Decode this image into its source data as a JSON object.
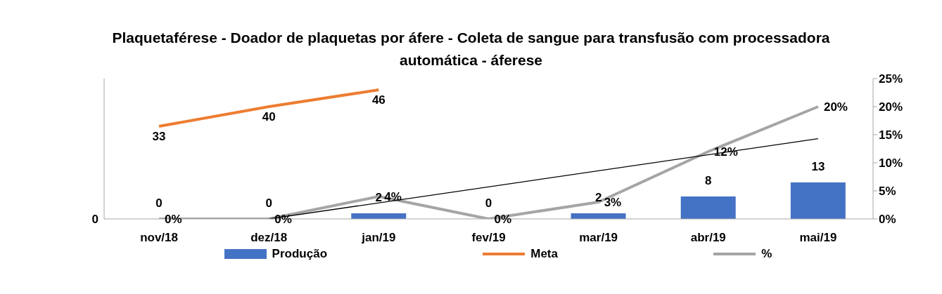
{
  "chart_data": {
    "type": "bar",
    "title": "Plaquetaférese - Doador de plaquetas por áfere - Coleta de sangue para transfusão com processadora automática - áferese",
    "categories": [
      "nov/18",
      "dez/18",
      "jan/19",
      "fev/19",
      "mar/19",
      "abr/19",
      "mai/19"
    ],
    "series": [
      {
        "name": "Produção",
        "color": "#4472c4",
        "values": [
          0,
          0,
          2,
          0,
          2,
          8,
          13
        ],
        "value_labels": [
          "0",
          "0",
          "2",
          "0",
          "2",
          "8",
          "13"
        ]
      },
      {
        "name": "Meta",
        "type": "line",
        "color": "#ed7d31",
        "values": [
          33,
          40,
          46,
          null,
          null,
          null,
          null
        ],
        "value_labels": [
          "33",
          "40",
          "46",
          null,
          null,
          null,
          null
        ]
      },
      {
        "name": "%",
        "type": "line",
        "color": "#a5a5a5",
        "axis": "y2",
        "values": [
          0,
          0,
          4,
          0,
          3,
          12,
          20
        ],
        "value_labels": [
          "0%",
          "0%",
          "4%",
          "0%",
          "3%",
          "12%",
          "20%"
        ]
      },
      {
        "type": "line",
        "color": "#000000",
        "axis": "y2",
        "x": [
          "dez/18",
          "mai/19"
        ],
        "values": [
          0,
          14.3
        ]
      }
    ],
    "ylim": [
      0,
      50
    ],
    "annotations": [
      "0"
    ],
    "y2lim": [
      0,
      25
    ],
    "y2ticks": [
      {
        "value": 0,
        "label": "0%"
      },
      {
        "value": 5,
        "label": "5%"
      },
      {
        "value": 10,
        "label": "10%"
      },
      {
        "value": 15,
        "label": "15%"
      },
      {
        "value": 20,
        "label": "20%"
      },
      {
        "value": 25,
        "label": "25%"
      }
    ],
    "legend": "bottom",
    "marker": "none"
  }
}
